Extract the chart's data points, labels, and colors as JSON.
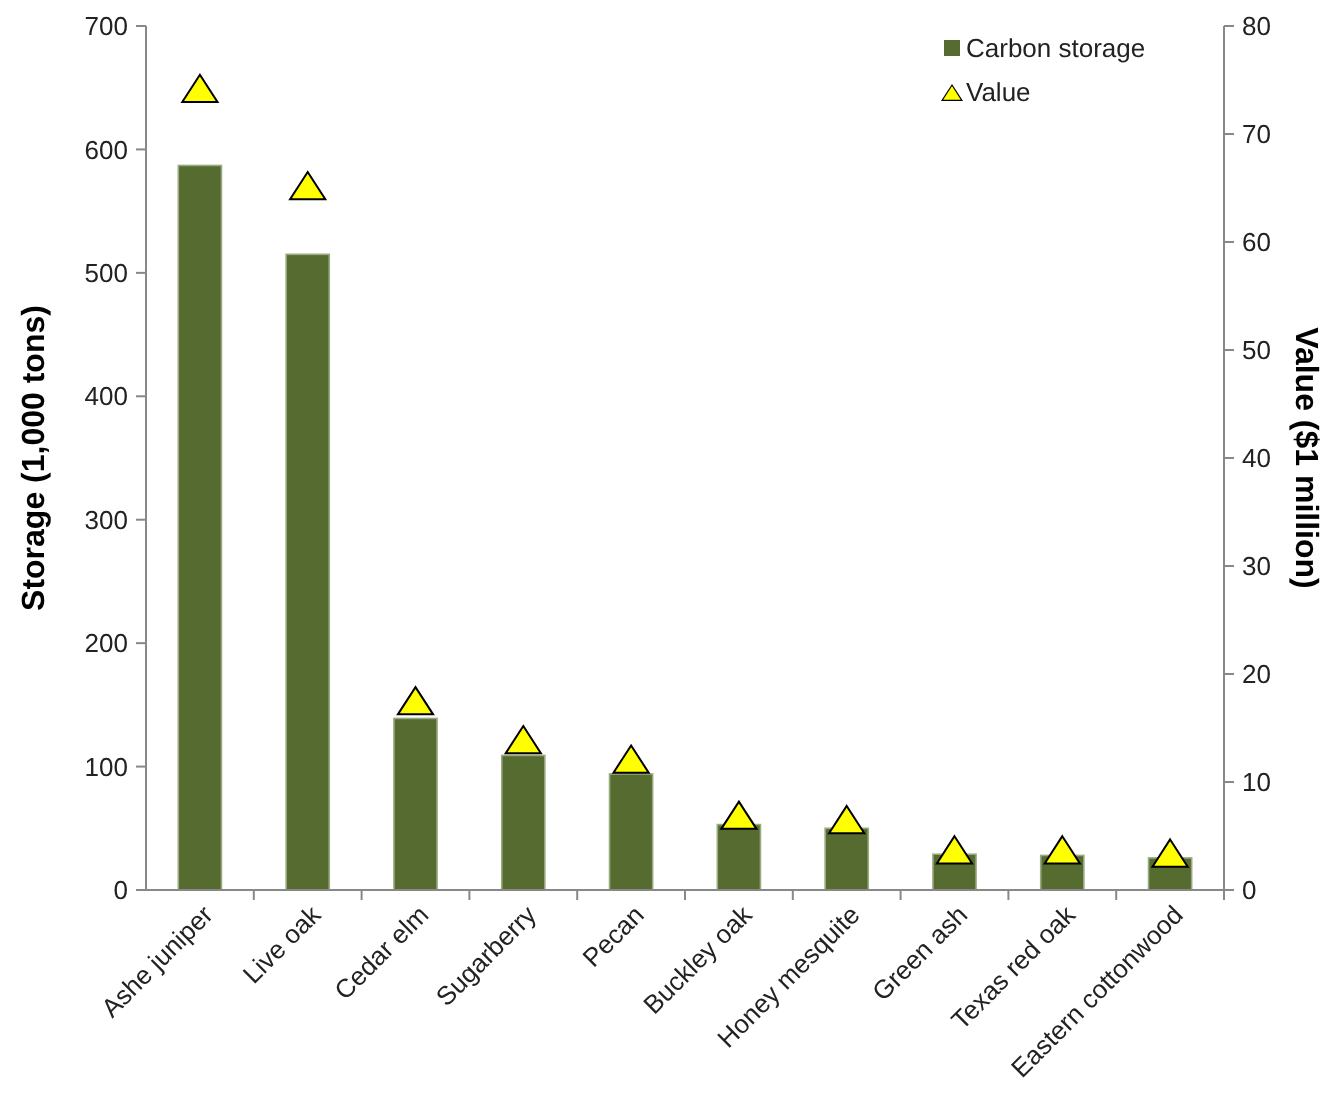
{
  "chart_data": {
    "type": "bar",
    "ylabel": "Storage (1,000 tons)",
    "y2label": "Value ($1 million)",
    "categories": [
      "Ashe juniper",
      "Live oak",
      "Cedar elm",
      "Sugarberry",
      "Pecan",
      "Buckley oak",
      "Honey mesquite",
      "Green ash",
      "Texas red oak",
      "Eastern cottonwood"
    ],
    "series": [
      {
        "name": "Carbon storage",
        "color": "#556b2f",
        "values": [
          587,
          515,
          139,
          109,
          94,
          53,
          50,
          29,
          28,
          26
        ]
      },
      {
        "name": "Value",
        "type": "scatter",
        "axis": "y2",
        "marker": "triangle",
        "color": "#ffff00",
        "values": [
          74,
          65,
          17.3,
          13.7,
          11.9,
          6.7,
          6.3,
          3.5,
          3.5,
          3.2
        ]
      }
    ],
    "ylim": [
      0,
      700
    ],
    "yticks": [
      0,
      100,
      200,
      300,
      400,
      500,
      600,
      700
    ],
    "y2lim": [
      0,
      80
    ],
    "y2ticks": [
      0,
      10,
      20,
      30,
      40,
      50,
      60,
      70,
      80
    ],
    "grid": false,
    "legend": "top right"
  }
}
